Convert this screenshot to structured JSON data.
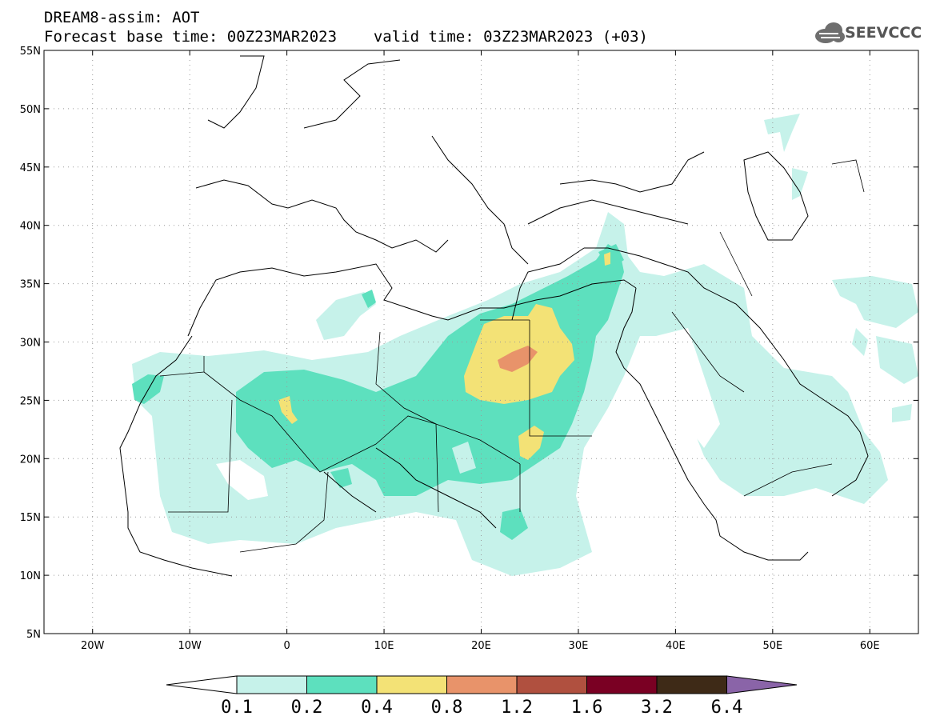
{
  "header": {
    "title": "DREAM8-assim: AOT",
    "base_time_label": "Forecast base time: 00Z23MAR2023",
    "valid_time_label": "valid time: 03Z23MAR2023 (+03)",
    "logo_text": "SEEVCCC"
  },
  "axes": {
    "lat_ticks": [
      "55N",
      "50N",
      "45N",
      "40N",
      "35N",
      "30N",
      "25N",
      "20N",
      "15N",
      "10N",
      "5N"
    ],
    "lon_ticks": [
      "20W",
      "10W",
      "0",
      "10E",
      "20E",
      "30E",
      "40E",
      "50E",
      "60E"
    ],
    "lon_range": [
      -25,
      65
    ],
    "lat_range": [
      5,
      55
    ],
    "grid": "dotted"
  },
  "colorbar": {
    "labels": [
      "0.1",
      "0.2",
      "0.4",
      "0.8",
      "1.2",
      "1.6",
      "3.2",
      "6.4"
    ],
    "colors": [
      "#ffffff",
      "#c6f2ea",
      "#5de0be",
      "#f3e276",
      "#e8936a",
      "#b0503f",
      "#7a0023",
      "#3e2a17",
      "#8a64a8"
    ]
  },
  "icons": {
    "logo": "cloud-icon"
  }
}
